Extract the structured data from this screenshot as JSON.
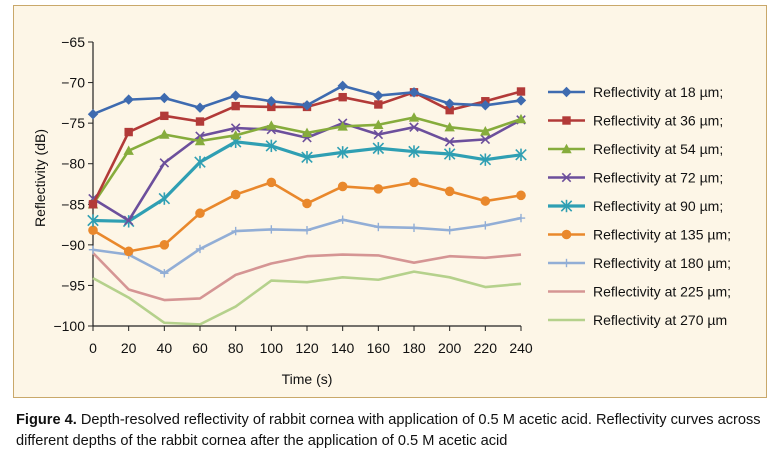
{
  "chart_data": {
    "type": "line",
    "title": "",
    "xlabel": "Time (s)",
    "ylabel": "Reflectivity (dB)",
    "x": [
      0,
      20,
      40,
      60,
      80,
      100,
      120,
      140,
      160,
      180,
      200,
      220,
      240
    ],
    "xlim": [
      0,
      240
    ],
    "ylim": [
      -100,
      -65
    ],
    "xticks": [
      "0",
      "20",
      "40",
      "60",
      "80",
      "100",
      "120",
      "140",
      "160",
      "180",
      "200",
      "220",
      "240"
    ],
    "yticks": [
      "−65",
      "−70",
      "−75",
      "−80",
      "−85",
      "−90",
      "−95",
      "−100"
    ],
    "ytick_values": [
      -65,
      -70,
      -75,
      -80,
      -85,
      -90,
      -95,
      -100
    ],
    "grid": false,
    "legend_position": "right",
    "series": [
      {
        "name": "Reflectivity at 18 µm;",
        "color": "#3e6bb0",
        "marker": "diamond",
        "values": [
          -73.9,
          -72.1,
          -71.9,
          -73.1,
          -71.6,
          -72.3,
          -72.8,
          -70.4,
          -71.6,
          -71.2,
          -72.6,
          -72.8,
          -72.2
        ]
      },
      {
        "name": "Reflectivity at 36 µm;",
        "color": "#b23a38",
        "marker": "square",
        "values": [
          -85.0,
          -76.1,
          -74.1,
          -74.8,
          -72.9,
          -73.0,
          -73.0,
          -71.8,
          -72.7,
          -71.2,
          -73.4,
          -72.3,
          -71.1
        ]
      },
      {
        "name": "Reflectivity at 54 µm;",
        "color": "#86ac3c",
        "marker": "triangle",
        "values": [
          -85.0,
          -78.4,
          -76.4,
          -77.2,
          -76.5,
          -75.3,
          -76.2,
          -75.4,
          -75.2,
          -74.3,
          -75.5,
          -76.0,
          -74.5
        ]
      },
      {
        "name": "Reflectivity at 72 µm;",
        "color": "#6c4f9c",
        "marker": "x",
        "values": [
          -84.3,
          -87.0,
          -79.9,
          -76.6,
          -75.6,
          -75.8,
          -76.8,
          -75.0,
          -76.4,
          -75.5,
          -77.3,
          -77.0,
          -74.6
        ]
      },
      {
        "name": "Reflectivity at 90 µm;",
        "color": "#2f9fb3",
        "marker": "star",
        "values": [
          -87.0,
          -87.1,
          -84.3,
          -79.8,
          -77.3,
          -77.8,
          -79.2,
          -78.6,
          -78.1,
          -78.5,
          -78.8,
          -79.5,
          -78.9
        ]
      },
      {
        "name": "Reflectivity at 135 µm;",
        "color": "#e9882c",
        "marker": "circle",
        "values": [
          -88.2,
          -90.8,
          -90.0,
          -86.1,
          -83.8,
          -82.3,
          -84.9,
          -82.8,
          -83.1,
          -82.3,
          -83.4,
          -84.6,
          -83.9
        ]
      },
      {
        "name": "Reflectivity at 180 µm;",
        "color": "#92aed6",
        "marker": "plus",
        "values": [
          -90.6,
          -91.2,
          -93.5,
          -90.5,
          -88.3,
          -88.1,
          -88.2,
          -86.9,
          -87.8,
          -87.9,
          -88.2,
          -87.6,
          -86.7
        ]
      },
      {
        "name": "Reflectivity at 225 µm;",
        "color": "#d59594",
        "marker": "none",
        "values": [
          -91.0,
          -95.5,
          -96.8,
          -96.6,
          -93.7,
          -92.3,
          -91.4,
          -91.2,
          -91.3,
          -92.2,
          -91.4,
          -91.6,
          -91.2
        ]
      },
      {
        "name": "Reflectivity at 270 µm",
        "color": "#b5d18c",
        "marker": "none",
        "values": [
          -94.1,
          -96.5,
          -99.6,
          -99.8,
          -97.6,
          -94.4,
          -94.6,
          -94.0,
          -94.3,
          -93.3,
          -94.0,
          -95.2,
          -94.8
        ]
      }
    ]
  },
  "caption": {
    "label": "Figure 4.",
    "text": " Depth-resolved reflectivity of rabbit cornea with application of 0.5 M acetic acid. Reflectivity curves across different depths of the rabbit cornea after the application of 0.5 M acetic acid"
  }
}
